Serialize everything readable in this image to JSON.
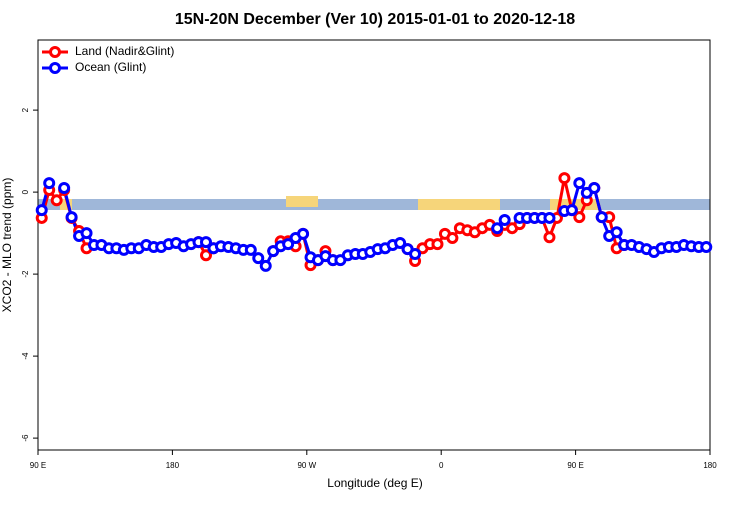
{
  "chart_data": {
    "type": "line",
    "title": "15N-20N December (Ver 10)   2015-01-01 to 2020-12-18",
    "x_label": "Longitude (deg E)",
    "y_label": "XCO2 - MLO trend (ppm)",
    "x": [
      92.5,
      97.5,
      102.5,
      107.5,
      112.5,
      117.5,
      122.5,
      127.5,
      132.5,
      137.5,
      142.5,
      147.5,
      152.5,
      157.5,
      162.5,
      167.5,
      172.5,
      177.5,
      182.5,
      187.5,
      192.5,
      197.5,
      202.5,
      207.5,
      212.5,
      217.5,
      222.5,
      227.5,
      232.5,
      237.5,
      242.5,
      247.5,
      252.5,
      257.5,
      262.5,
      267.5,
      272.5,
      277.5,
      282.5,
      287.5,
      292.5,
      297.5,
      302.5,
      307.5,
      312.5,
      317.5,
      322.5,
      327.5,
      332.5,
      337.5,
      342.5,
      347.5,
      352.5,
      357.5,
      362.5,
      367.5,
      372.5,
      377.5,
      382.5,
      387.5,
      392.5,
      397.5,
      402.5,
      407.5,
      412.5,
      417.5,
      422.5,
      427.5,
      432.5,
      437.5,
      442.5,
      447.5,
      452.5,
      457.5,
      462.5,
      467.5,
      472.5,
      477.5,
      482.5,
      487.5,
      492.5,
      497.5,
      502.5,
      507.5,
      512.5,
      517.5,
      522.5,
      527.5,
      532.5,
      537.5
    ],
    "series": [
      {
        "name": "Land (Nadir&Glint)",
        "color": "#ff0000",
        "values": [
          -0.63,
          0.05,
          -0.2,
          0.05,
          -0.63,
          -0.95,
          -1.37,
          null,
          null,
          null,
          null,
          null,
          null,
          null,
          null,
          null,
          null,
          null,
          null,
          null,
          null,
          -1.22,
          -1.54,
          -1.37,
          null,
          null,
          null,
          null,
          null,
          null,
          null,
          -1.44,
          -1.2,
          -1.2,
          -1.32,
          -1.02,
          -1.78,
          -1.66,
          -1.44,
          -1.66,
          null,
          null,
          null,
          null,
          null,
          null,
          null,
          null,
          null,
          -1.39,
          -1.68,
          -1.37,
          -1.27,
          -1.27,
          -1.02,
          -1.12,
          -0.88,
          -0.93,
          -0.98,
          -0.88,
          -0.8,
          -0.95,
          -0.8,
          -0.88,
          -0.78,
          -0.63,
          -0.63,
          -0.63,
          -1.1,
          -0.63,
          0.34,
          -0.44,
          -0.61,
          -0.2,
          0.1,
          -0.61,
          -0.61,
          -1.37,
          -1.29,
          null,
          null,
          null,
          null,
          null,
          null,
          null,
          null,
          null,
          null,
          null
        ]
      },
      {
        "name": "Ocean (Glint)",
        "color": "#0000ff",
        "values": [
          -0.44,
          0.22,
          null,
          0.1,
          -0.61,
          -1.07,
          -1.0,
          -1.29,
          -1.29,
          -1.37,
          -1.37,
          -1.41,
          -1.37,
          -1.37,
          -1.29,
          -1.34,
          -1.34,
          -1.27,
          -1.24,
          -1.32,
          -1.27,
          -1.22,
          -1.22,
          -1.37,
          -1.32,
          -1.34,
          -1.37,
          -1.41,
          -1.41,
          -1.61,
          -1.8,
          -1.44,
          -1.32,
          -1.27,
          -1.12,
          -1.02,
          -1.59,
          -1.66,
          -1.56,
          -1.66,
          -1.66,
          -1.54,
          -1.51,
          -1.51,
          -1.46,
          -1.39,
          -1.37,
          -1.29,
          -1.24,
          -1.39,
          -1.51,
          null,
          null,
          null,
          null,
          null,
          null,
          null,
          null,
          null,
          null,
          -0.88,
          -0.68,
          null,
          -0.63,
          -0.63,
          -0.63,
          -0.63,
          -0.63,
          null,
          -0.46,
          -0.44,
          0.22,
          -0.02,
          0.1,
          -0.61,
          -1.07,
          -0.98,
          -1.29,
          -1.29,
          -1.34,
          -1.39,
          -1.46,
          -1.37,
          -1.34,
          -1.34,
          -1.29,
          -1.32,
          -1.34,
          -1.34
        ]
      }
    ],
    "xlim": [
      90,
      540
    ],
    "xticks": [
      {
        "value": 90,
        "label": "90 E"
      },
      180,
      {
        "value": 270,
        "label": "90 W"
      },
      {
        "value": 360,
        "label": "0"
      },
      {
        "value": 450,
        "label": "90 E"
      },
      {
        "value": 540,
        "label": "180"
      }
    ],
    "ylim": [
      -6.29,
      3.71
    ],
    "yticks": [
      2,
      0,
      -2,
      -4,
      -6
    ],
    "legend": "top-left"
  }
}
